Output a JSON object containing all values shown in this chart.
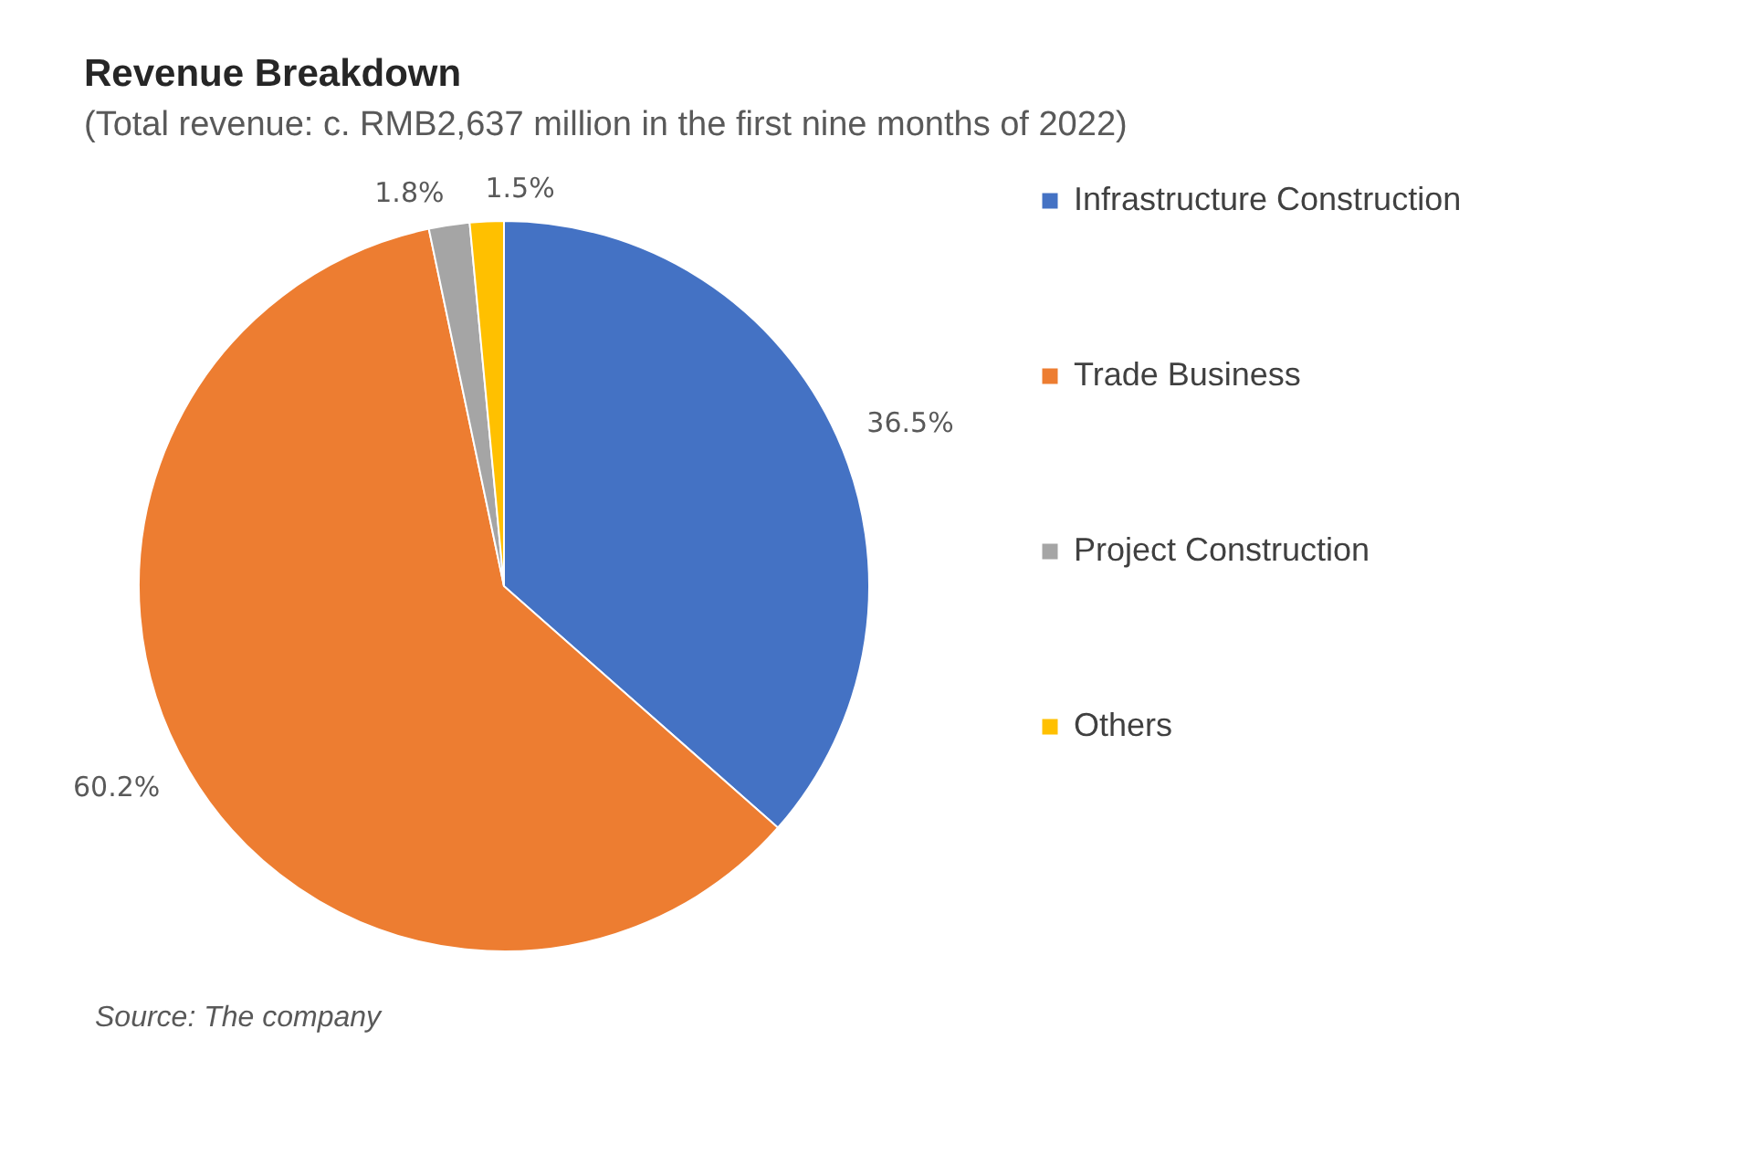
{
  "chart_data": {
    "type": "pie",
    "title": "Revenue Breakdown",
    "subtitle": "(Total revenue: c. RMB2,637 million in the first nine months of 2022)",
    "categories": [
      "Infrastructure Construction",
      "Trade Business",
      "Project Construction",
      "Others"
    ],
    "values": [
      36.5,
      60.2,
      1.8,
      1.5
    ],
    "colors": [
      "#4472c4",
      "#ed7d31",
      "#a5a5a5",
      "#ffc000"
    ],
    "value_labels": [
      "36.5%",
      "60.2%",
      "1.8%",
      "1.5%"
    ],
    "legend": "right",
    "annotations": [
      "Source: The company"
    ]
  }
}
